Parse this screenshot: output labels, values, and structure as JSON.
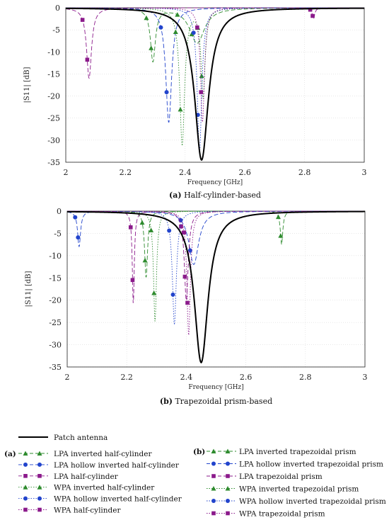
{
  "chart_data": [
    {
      "type": "line",
      "caption_tag": "a",
      "caption_text": "Half-cylinder-based",
      "xlabel": "Frequency [GHz]",
      "ylabel": "|S11| [dB]",
      "xlim": [
        2,
        3
      ],
      "ylim": [
        -35,
        0
      ],
      "xticks": [
        "2",
        "2.2",
        "2.4",
        "2.6",
        "2.8",
        "3"
      ],
      "yticks": [
        "0",
        "-5",
        "-10",
        "-15",
        "-20",
        "-25",
        "-30",
        "-35"
      ],
      "series": [
        {
          "name": "Patch antenna",
          "color": "#000000",
          "style": "solid",
          "marker": "none",
          "resonances": [
            {
              "f": 2.455,
              "depth": -34.5,
              "width": 0.028
            }
          ]
        },
        {
          "name": "LPA inverted half-cylinder",
          "color": "#2e8b2e",
          "style": "dash",
          "marker": "triangle",
          "resonances": [
            {
              "f": 2.292,
              "depth": -12.0,
              "width": 0.01
            },
            {
              "f": 2.44,
              "depth": -8.0,
              "width": 0.03
            }
          ]
        },
        {
          "name": "LPA hollow inverted half-cylinder",
          "color": "#2244cc",
          "style": "dash",
          "marker": "circle",
          "resonances": [
            {
              "f": 2.345,
              "depth": -26.0,
              "width": 0.012
            }
          ]
        },
        {
          "name": "LPA half-cylinder",
          "color": "#8b1a8b",
          "style": "dash",
          "marker": "square",
          "resonances": [
            {
              "f": 2.078,
              "depth": -16.0,
              "width": 0.01
            },
            {
              "f": 2.83,
              "depth": -2.5,
              "width": 0.005
            }
          ]
        },
        {
          "name": "WPA inverted half-cylinder",
          "color": "#2e8b2e",
          "style": "dot",
          "marker": "triangle",
          "resonances": [
            {
              "f": 2.39,
              "depth": -31.0,
              "width": 0.01
            },
            {
              "f": 2.46,
              "depth": -20.0,
              "width": 0.008
            }
          ]
        },
        {
          "name": "WPA hollow inverted half-cylinder",
          "color": "#2244cc",
          "style": "dot",
          "marker": "circle",
          "resonances": [
            {
              "f": 2.448,
              "depth": -33.0,
              "width": 0.009
            }
          ]
        },
        {
          "name": "WPA half-cylinder",
          "color": "#8b1a8b",
          "style": "dot",
          "marker": "square",
          "resonances": [
            {
              "f": 2.458,
              "depth": -26.0,
              "width": 0.008
            }
          ]
        }
      ]
    },
    {
      "type": "line",
      "caption_tag": "b",
      "caption_text": "Trapezoidal prism-based",
      "xlabel": "Frequency [GHz]",
      "ylabel": "|S11| [dB]",
      "xlim": [
        2,
        3
      ],
      "ylim": [
        -35,
        0
      ],
      "xticks": [
        "2",
        "2.2",
        "2.4",
        "2.6",
        "2.8",
        "3"
      ],
      "yticks": [
        "0",
        "-5",
        "-10",
        "-15",
        "-20",
        "-25",
        "-30",
        "-35"
      ],
      "series": [
        {
          "name": "Patch antenna",
          "color": "#000000",
          "style": "solid",
          "marker": "none",
          "resonances": [
            {
              "f": 2.45,
              "depth": -34.0,
              "width": 0.028
            }
          ]
        },
        {
          "name": "LPA inverted trapezoidal prism",
          "color": "#2e8b2e",
          "style": "dash",
          "marker": "triangle",
          "resonances": [
            {
              "f": 2.265,
              "depth": -15.0,
              "width": 0.006
            },
            {
              "f": 2.72,
              "depth": -7.5,
              "width": 0.005
            }
          ]
        },
        {
          "name": "LPA hollow inverted trapezoidal prism",
          "color": "#2244cc",
          "style": "dash",
          "marker": "circle",
          "resonances": [
            {
              "f": 2.04,
              "depth": -8.0,
              "width": 0.006
            },
            {
              "f": 2.425,
              "depth": -12.0,
              "width": 0.02
            }
          ]
        },
        {
          "name": "LPA trapezoidal prism",
          "color": "#8b1a8b",
          "style": "dash",
          "marker": "square",
          "resonances": [
            {
              "f": 2.222,
              "depth": -21.0,
              "width": 0.004
            },
            {
              "f": 2.4,
              "depth": -20.0,
              "width": 0.008
            }
          ]
        },
        {
          "name": "WPA inverted trapezoidal prism",
          "color": "#2e8b2e",
          "style": "dot",
          "marker": "triangle",
          "resonances": [
            {
              "f": 2.295,
              "depth": -25.0,
              "width": 0.006
            }
          ]
        },
        {
          "name": "WPA hollow inverted trapezoidal prism",
          "color": "#2244cc",
          "style": "dot",
          "marker": "circle",
          "resonances": [
            {
              "f": 2.36,
              "depth": -25.5,
              "width": 0.008
            }
          ]
        },
        {
          "name": "WPA trapezoidal prism",
          "color": "#8b1a8b",
          "style": "dot",
          "marker": "square",
          "resonances": [
            {
              "f": 2.408,
              "depth": -28.0,
              "width": 0.007
            }
          ]
        }
      ]
    }
  ],
  "legend": {
    "patch_label": "Patch antenna",
    "group_a": {
      "tag": "a",
      "items": [
        "LPA inverted half-cylinder",
        "LPA hollow inverted half-cylinder",
        "LPA half-cylinder",
        "WPA inverted half-cylinder",
        "WPA hollow inverted half-cylinder",
        "WPA half-cylinder"
      ]
    },
    "group_b": {
      "tag": "b",
      "items": [
        "LPA inverted trapezoidal prism",
        "LPA hollow inverted trapezoidal prism",
        "LPA trapezoidal prism",
        "WPA inverted trapezoidal prism",
        "WPA hollow inverted trapezoidal prism",
        "WPA trapezoidal prism"
      ]
    },
    "item_styles": [
      {
        "color": "#2e8b2e",
        "marker": "triangle"
      },
      {
        "color": "#2244cc",
        "marker": "circle"
      },
      {
        "color": "#8b1a8b",
        "marker": "square"
      },
      {
        "color": "#2e8b2e",
        "marker": "triangle"
      },
      {
        "color": "#2244cc",
        "marker": "circle"
      },
      {
        "color": "#8b1a8b",
        "marker": "square"
      }
    ]
  }
}
